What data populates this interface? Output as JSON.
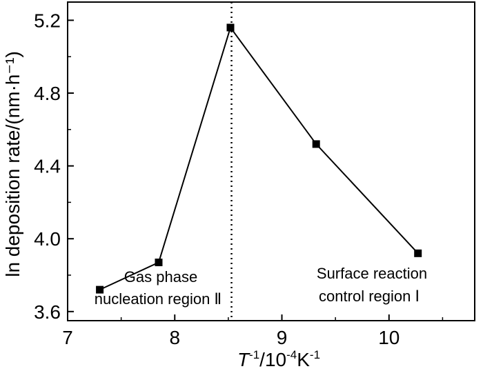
{
  "chart_data": {
    "type": "line",
    "x": [
      7.3,
      7.85,
      8.52,
      9.32,
      10.27
    ],
    "y": [
      3.72,
      3.87,
      5.16,
      4.52,
      3.92
    ],
    "xlim": [
      7.0,
      10.8
    ],
    "ylim": [
      3.55,
      5.3
    ],
    "xticks": [
      7,
      8,
      9,
      10
    ],
    "xtick_labels": [
      "7",
      "8",
      "9",
      "10"
    ],
    "yticks": [
      3.6,
      4.0,
      4.4,
      4.8,
      5.2
    ],
    "ytick_labels": [
      "3.6",
      "4.0",
      "4.4",
      "4.8",
      "5.2"
    ],
    "xlabel": {
      "symbol": "T",
      "symbol_sup": "-1",
      "mid": "/10",
      "mid_sup": "-4",
      "unit": "K",
      "unit_sup": "-1"
    },
    "ylabel": "ln deposition rate/(nm·h⁻¹)",
    "divider_x": 8.53,
    "marker": "square",
    "color": "#000000",
    "grid": false,
    "annotations": {
      "left_line1": "Gas phase",
      "left_line2": "nucleation region Ⅱ",
      "right_line1": "Surface reaction",
      "right_line2": "control region Ⅰ"
    }
  }
}
